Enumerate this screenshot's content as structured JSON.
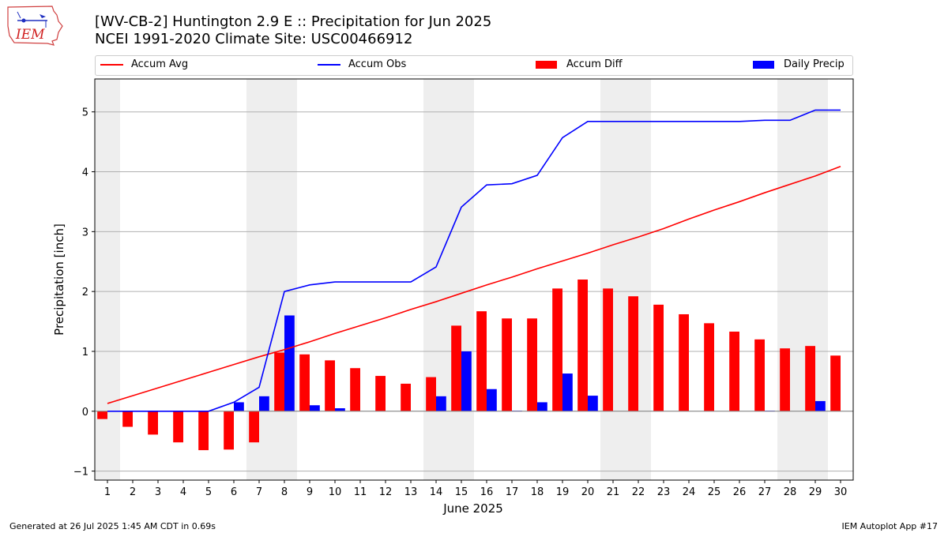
{
  "header": {
    "logo_text": "IEM",
    "title_line1": "[WV-CB-2] Huntington 2.9 E :: Precipitation for Jun 2025",
    "title_line2": "NCEI 1991-2020 Climate Site: USC00466912"
  },
  "legend": {
    "placement": "top",
    "items": [
      {
        "label": "Accum Avg",
        "color": "#ff0000",
        "kind": "line"
      },
      {
        "label": "Accum Obs",
        "color": "#0000ff",
        "kind": "line"
      },
      {
        "label": "Accum Diff",
        "color": "#ff0000",
        "kind": "bar"
      },
      {
        "label": "Daily Precip",
        "color": "#0000ff",
        "kind": "bar"
      }
    ]
  },
  "chart_data": {
    "type": "bar",
    "xlabel": "June 2025",
    "ylabel": "Precipitation [inch]",
    "categories": [
      "1",
      "2",
      "3",
      "4",
      "5",
      "6",
      "7",
      "8",
      "9",
      "10",
      "11",
      "12",
      "13",
      "14",
      "15",
      "16",
      "17",
      "18",
      "19",
      "20",
      "21",
      "22",
      "23",
      "24",
      "25",
      "26",
      "27",
      "28",
      "29",
      "30"
    ],
    "xlim": [
      0.5,
      30.5
    ],
    "ylim": [
      -1.15,
      5.55
    ],
    "yticks": [
      -1,
      0,
      1,
      2,
      3,
      4,
      5
    ],
    "grid": "y",
    "weekend_shading": [
      [
        0.5,
        1.5
      ],
      [
        6.5,
        8.5
      ],
      [
        13.5,
        15.5
      ],
      [
        20.5,
        22.5
      ],
      [
        27.5,
        29.5
      ]
    ],
    "shading_color": "#eeeeee",
    "series": [
      {
        "name": "Accum Diff",
        "type": "bar",
        "color": "#ff0000",
        "values": [
          -0.13,
          -0.26,
          -0.39,
          -0.52,
          -0.65,
          -0.64,
          -0.52,
          0.98,
          0.95,
          0.85,
          0.72,
          0.59,
          0.46,
          0.57,
          1.43,
          1.67,
          1.55,
          1.55,
          2.05,
          2.2,
          2.05,
          1.92,
          1.78,
          1.62,
          1.47,
          1.33,
          1.2,
          1.05,
          1.09,
          0.93
        ]
      },
      {
        "name": "Daily Precip",
        "type": "bar",
        "color": "#0000ff",
        "values": [
          0,
          0,
          0,
          0,
          0,
          0.15,
          0.25,
          1.6,
          0.1,
          0.05,
          0,
          0,
          0,
          0.25,
          1.0,
          0.37,
          0.01,
          0.15,
          0.63,
          0.26,
          0,
          0,
          0,
          0,
          0,
          0,
          0.01,
          0,
          0.17,
          0
        ]
      },
      {
        "name": "Accum Avg",
        "type": "line",
        "color": "#ff0000",
        "values": [
          0.13,
          0.26,
          0.39,
          0.52,
          0.65,
          0.78,
          0.91,
          1.03,
          1.16,
          1.3,
          1.43,
          1.56,
          1.7,
          1.83,
          1.97,
          2.11,
          2.24,
          2.38,
          2.51,
          2.64,
          2.78,
          2.91,
          3.05,
          3.21,
          3.36,
          3.5,
          3.65,
          3.79,
          3.93,
          4.09
        ]
      },
      {
        "name": "Accum Obs",
        "type": "line",
        "color": "#0000ff",
        "values": [
          0,
          0,
          0,
          0,
          0,
          0.15,
          0.4,
          2.0,
          2.11,
          2.16,
          2.16,
          2.16,
          2.16,
          2.41,
          3.41,
          3.78,
          3.8,
          3.94,
          4.57,
          4.84,
          4.84,
          4.84,
          4.84,
          4.84,
          4.84,
          4.84,
          4.86,
          4.86,
          5.03,
          5.03
        ]
      }
    ]
  },
  "footer": {
    "left": "Generated at 26 Jul 2025 1:45 AM CDT in 0.69s",
    "right": "IEM Autoplot App #17"
  }
}
